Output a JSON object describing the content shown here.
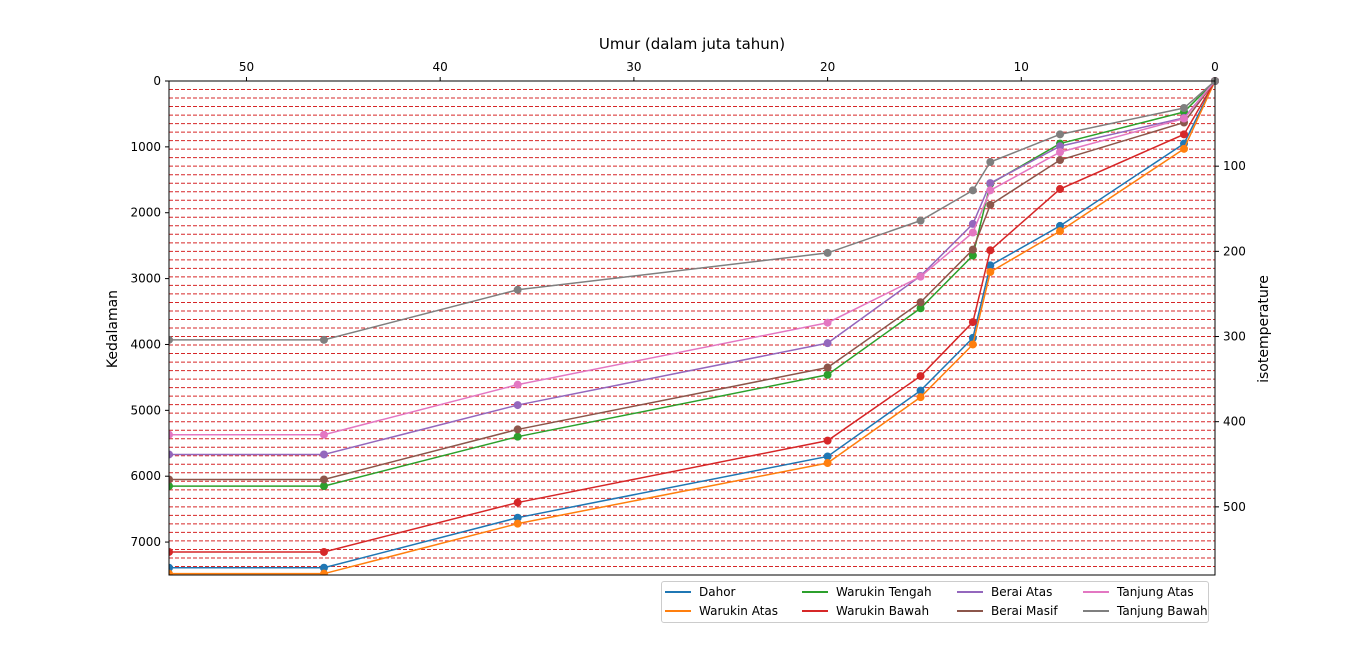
{
  "chart_data": {
    "type": "line",
    "title": "Umur (dalam juta tahun)",
    "xlabel": "Umur (dalam juta tahun)",
    "ylabel": "Kedalaman",
    "y2label": "isotemperature",
    "xlim": [
      54,
      0
    ],
    "ylim": [
      7500,
      0
    ],
    "y2lim": [
      580,
      0
    ],
    "xticks": [
      50,
      40,
      30,
      20,
      10,
      0
    ],
    "yticks": [
      0,
      1000,
      2000,
      3000,
      4000,
      5000,
      6000,
      7000
    ],
    "y2ticks": [
      100,
      200,
      300,
      400,
      500
    ],
    "x_axis_position": "top",
    "isotherm_lines": {
      "color": "#d62728",
      "style": "dashed",
      "step": 10,
      "range": [
        10,
        570
      ]
    },
    "legend": {
      "placement": "lower-right",
      "columns": 4
    },
    "series": [
      {
        "name": "Dahor",
        "color": "#1f77b4",
        "x": [
          54,
          46,
          36,
          20,
          15.2,
          12.5,
          11.6,
          8,
          1.6,
          0
        ],
        "y": [
          7390,
          7390,
          6630,
          5700,
          4700,
          3900,
          2800,
          2200,
          950,
          0
        ]
      },
      {
        "name": "Warukin Atas",
        "color": "#ff7f0e",
        "x": [
          54,
          46,
          36,
          20,
          15.2,
          12.5,
          11.6,
          8,
          1.6,
          0
        ],
        "y": [
          7480,
          7480,
          6720,
          5800,
          4800,
          4000,
          2900,
          2280,
          1030,
          0
        ]
      },
      {
        "name": "Warukin Tengah",
        "color": "#2ca02c",
        "x": [
          54,
          46,
          36,
          20,
          15.2,
          12.5,
          11.6,
          8,
          1.6,
          0
        ],
        "y": [
          6150,
          6150,
          5400,
          4460,
          3450,
          2650,
          1560,
          950,
          470,
          0
        ]
      },
      {
        "name": "Warukin Bawah",
        "color": "#d62728",
        "x": [
          54,
          46,
          36,
          20,
          15.2,
          12.5,
          11.6,
          8,
          1.6,
          0
        ],
        "y": [
          7150,
          7150,
          6400,
          5460,
          4480,
          3660,
          2570,
          1640,
          810,
          0
        ]
      },
      {
        "name": "Berai Atas",
        "color": "#9467bd",
        "x": [
          54,
          46,
          36,
          20,
          15.2,
          12.5,
          11.6,
          8,
          1.6,
          0
        ],
        "y": [
          5670,
          5670,
          4920,
          3980,
          2960,
          2170,
          1550,
          990,
          560,
          0
        ]
      },
      {
        "name": "Berai Masif",
        "color": "#8c564b",
        "x": [
          54,
          46,
          36,
          20,
          15.2,
          12.5,
          11.6,
          8,
          1.6,
          0
        ],
        "y": [
          6050,
          6050,
          5290,
          4350,
          3360,
          2560,
          1880,
          1200,
          630,
          0
        ]
      },
      {
        "name": "Tanjung Atas",
        "color": "#e377c2",
        "x": [
          54,
          46,
          36,
          20,
          15.2,
          12.5,
          11.6,
          8,
          1.6,
          0
        ],
        "y": [
          5370,
          5370,
          4610,
          3670,
          2970,
          2300,
          1660,
          1080,
          570,
          0
        ]
      },
      {
        "name": "Tanjung Bawah",
        "color": "#7f7f7f",
        "x": [
          54,
          46,
          36,
          20,
          15.2,
          12.5,
          11.6,
          8,
          1.6,
          0
        ],
        "y": [
          3930,
          3930,
          3170,
          2610,
          2120,
          1660,
          1230,
          810,
          410,
          0
        ]
      }
    ]
  }
}
